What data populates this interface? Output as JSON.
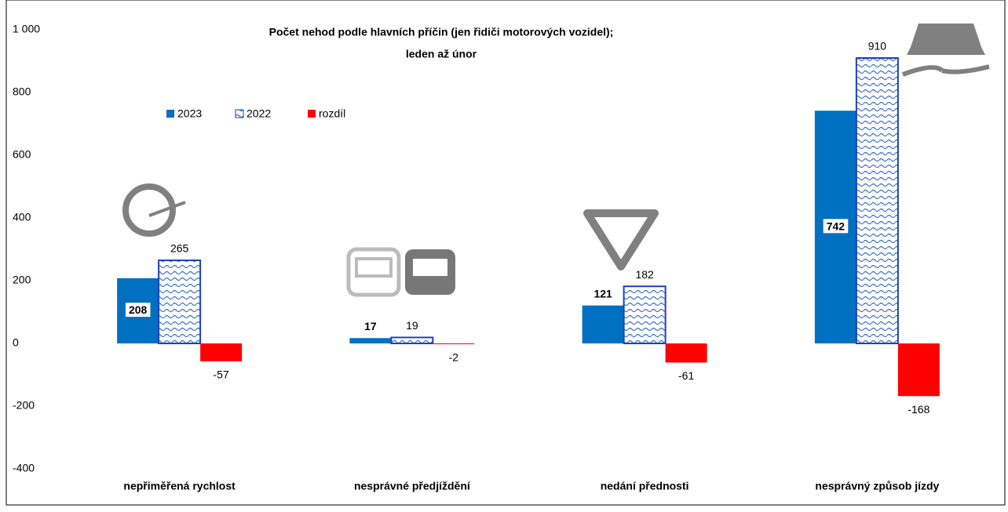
{
  "chart_data": {
    "type": "bar",
    "title": [
      "Počet nehod podle hlavních příčin (jen řidiči motorových vozidel);",
      "leden až únor"
    ],
    "categories": [
      "nepřiměřená rychlost",
      "nesprávné předjíždění",
      "nedání přednosti",
      "nesprávný způsob jízdy"
    ],
    "series": [
      {
        "name": "2023",
        "color": "#0070c0",
        "values": [
          208,
          17,
          121,
          742
        ]
      },
      {
        "name": "2022",
        "color": "#1f3fbf",
        "values": [
          265,
          19,
          182,
          910
        ]
      },
      {
        "name": "rozdíl",
        "color": "#ff0000",
        "values": [
          -57,
          -2,
          -61,
          -168
        ]
      }
    ],
    "ylim": [
      -400,
      1000
    ],
    "yticks": [
      -400,
      -200,
      0,
      200,
      400,
      600,
      800,
      {
        "value": 1000,
        "label": "1 000"
      }
    ],
    "grid": false
  }
}
